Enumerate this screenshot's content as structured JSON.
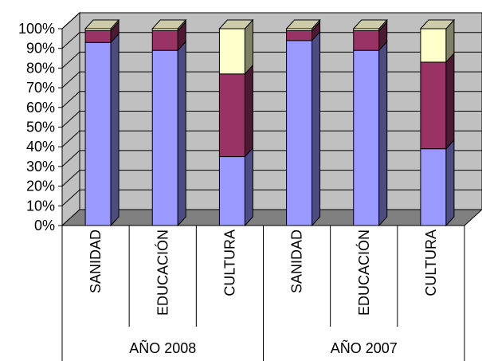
{
  "chart_data": {
    "type": "bar",
    "stacked": true,
    "percent_stacked": true,
    "three_d": true,
    "groups": [
      {
        "label": "AÑO 2008",
        "categories": [
          "SANIDAD",
          "EDUCACIÓN",
          "CULTURA"
        ]
      },
      {
        "label": "AÑO 2007",
        "categories": [
          "SANIDAD",
          "EDUCACIÓN",
          "CULTURA"
        ]
      }
    ],
    "categories": [
      "SANIDAD",
      "EDUCACIÓN",
      "CULTURA",
      "SANIDAD",
      "EDUCACIÓN",
      "CULTURA"
    ],
    "series": [
      {
        "values": [
          93,
          89,
          35,
          94,
          89,
          39
        ]
      },
      {
        "values": [
          6,
          10,
          42,
          5,
          10,
          44
        ]
      },
      {
        "values": [
          1,
          1,
          23,
          1,
          1,
          17
        ]
      }
    ],
    "ylim": [
      0,
      100
    ],
    "y_ticks": [
      "0%",
      "10%",
      "20%",
      "30%",
      "40%",
      "50%",
      "60%",
      "70%",
      "80%",
      "90%",
      "100%"
    ],
    "grid": true,
    "legend": "none",
    "colors": {
      "series": [
        "#9999ff",
        "#993366",
        "#ffffcc"
      ],
      "series_side": [
        "#4c4c80",
        "#4c1a33",
        "#808066"
      ],
      "series_top": [
        "#7a7acc",
        "#7a2952",
        "#ccccaa"
      ],
      "floor": "#808080",
      "wall": "#c0c0c0"
    }
  }
}
